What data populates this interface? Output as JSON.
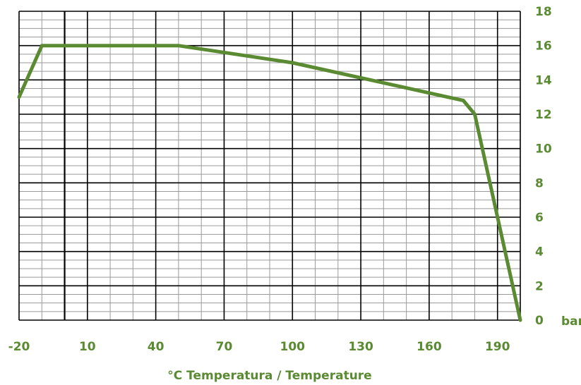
{
  "chart_data": {
    "type": "line",
    "title": "",
    "xlabel": "°C Temperatura / Temperature",
    "ylabel": "",
    "y_unit_label": "bar",
    "xlim": [
      -20,
      200
    ],
    "ylim": [
      0,
      18
    ],
    "x_ticks": [
      -20,
      10,
      40,
      70,
      100,
      130,
      160,
      190
    ],
    "y_ticks": [
      0,
      2,
      4,
      6,
      8,
      10,
      12,
      14,
      16,
      18
    ],
    "grid": true,
    "series": [
      {
        "name": "",
        "color": "#5a8a32",
        "points": [
          {
            "x": -20,
            "y": 13
          },
          {
            "x": -10,
            "y": 16
          },
          {
            "x": 50,
            "y": 16
          },
          {
            "x": 100,
            "y": 15
          },
          {
            "x": 175,
            "y": 12.8
          },
          {
            "x": 180,
            "y": 12
          },
          {
            "x": 200,
            "y": 0
          }
        ]
      }
    ],
    "colors": {
      "label": "#5a8a32",
      "grid_major": "#000000",
      "grid_minor": "#9a9a9a"
    }
  }
}
